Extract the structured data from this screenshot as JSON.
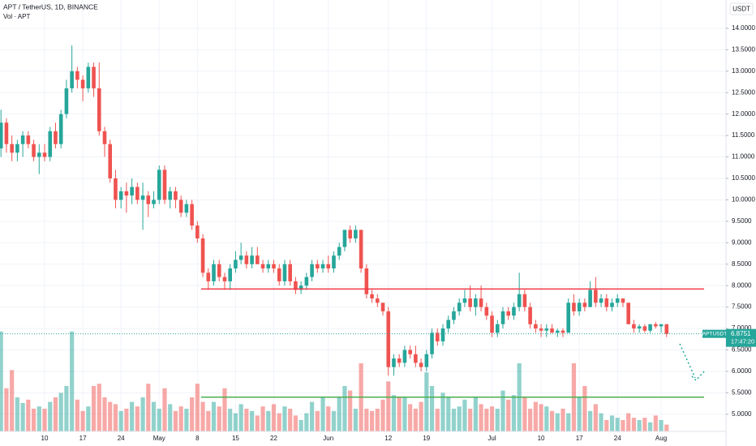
{
  "chart_data": {
    "type": "candlestick",
    "title": "APT / TetherUS, 1D, BINANCE",
    "currency": "USDT",
    "up_color": "#26a69a",
    "down_color": "#ef5350",
    "categories": [
      null,
      null,
      null,
      null,
      null,
      null,
      null,
      null,
      "10",
      null,
      null,
      null,
      null,
      null,
      null,
      "17",
      null,
      null,
      null,
      null,
      null,
      null,
      "24",
      null,
      null,
      null,
      null,
      null,
      null,
      "May",
      null,
      null,
      null,
      null,
      null,
      null,
      "8",
      null,
      null,
      null,
      null,
      null,
      null,
      "15",
      null,
      null,
      null,
      null,
      null,
      null,
      "22",
      null,
      null,
      null,
      null,
      null,
      null,
      null,
      null,
      null,
      "Jun",
      null,
      null,
      null,
      null,
      null,
      null,
      null,
      null,
      null,
      null,
      "12",
      null,
      null,
      null,
      null,
      null,
      null,
      "19",
      null,
      null,
      null,
      null,
      null,
      null,
      null,
      null,
      null,
      null,
      null,
      "Jul",
      null,
      null,
      null,
      null,
      null,
      null,
      null,
      null,
      "10",
      null,
      null,
      null,
      null,
      null,
      null,
      "17",
      null,
      null,
      null,
      null,
      null,
      null,
      "24",
      null,
      null,
      null,
      null,
      null,
      null,
      null,
      "Aug",
      null
    ],
    "open": [
      11.2,
      11.8,
      11.3,
      11.1,
      11.3,
      11.5,
      11.3,
      11.0,
      11.1,
      11.0,
      11.6,
      11.3,
      12.0,
      12.6,
      13.0,
      12.8,
      12.6,
      13.1,
      12.6,
      11.6,
      11.3,
      10.5,
      10.0,
      10.2,
      10.1,
      10.3,
      10.0,
      10.1,
      9.9,
      10.0,
      10.7,
      10.0,
      10.2,
      10.0,
      9.7,
      9.9,
      9.4,
      9.1,
      8.3,
      8.1,
      8.5,
      8.2,
      8.1,
      8.4,
      8.6,
      8.7,
      8.5,
      8.7,
      8.5,
      8.4,
      8.5,
      8.4,
      8.1,
      8.5,
      8.1,
      7.9,
      8.0,
      8.2,
      8.5,
      8.4,
      8.5,
      8.4,
      8.7,
      8.9,
      9.3,
      9.1,
      9.3,
      8.4,
      7.8,
      7.7,
      7.6,
      7.4,
      6.1,
      6.3,
      6.2,
      6.5,
      6.4,
      6.2,
      6.1,
      6.4,
      6.9,
      6.7,
      7.0,
      7.2,
      7.4,
      7.6,
      7.7,
      7.5,
      7.7,
      7.5,
      7.3,
      6.9,
      7.1,
      7.4,
      7.3,
      7.5,
      7.8,
      7.5,
      7.1,
      7.0,
      6.95,
      7.0,
      6.9,
      6.95,
      6.9,
      7.6,
      7.4,
      7.6,
      7.5,
      7.9,
      7.6,
      7.7,
      7.5,
      7.6,
      7.7,
      7.6,
      7.1,
      7.0,
      7.05,
      6.95,
      7.1,
      7.05,
      7.1
    ],
    "high": [
      12.1,
      11.9,
      11.5,
      11.4,
      11.6,
      11.6,
      11.4,
      11.3,
      11.3,
      11.7,
      11.8,
      12.1,
      12.8,
      13.6,
      13.1,
      12.9,
      13.2,
      13.2,
      13.2,
      11.7,
      11.4,
      10.7,
      10.3,
      10.4,
      10.5,
      10.4,
      10.4,
      10.2,
      10.2,
      10.8,
      10.8,
      10.3,
      10.3,
      10.1,
      10.0,
      10.0,
      9.5,
      9.2,
      8.4,
      8.6,
      8.6,
      8.3,
      8.5,
      8.8,
      9.0,
      8.8,
      8.9,
      8.9,
      8.6,
      8.6,
      8.6,
      8.5,
      8.6,
      8.6,
      8.2,
      8.1,
      8.3,
      8.6,
      8.6,
      8.6,
      8.7,
      8.8,
      9.0,
      9.3,
      9.4,
      9.4,
      9.3,
      8.5,
      7.9,
      7.8,
      7.6,
      7.5,
      6.4,
      6.4,
      6.6,
      6.6,
      6.6,
      6.3,
      6.5,
      7.0,
      7.0,
      7.1,
      7.3,
      7.5,
      7.7,
      7.9,
      8.0,
      7.8,
      8.0,
      7.6,
      7.4,
      7.2,
      7.5,
      7.5,
      7.6,
      8.3,
      7.9,
      7.6,
      7.2,
      7.1,
      7.1,
      7.1,
      7.0,
      7.0,
      7.7,
      7.8,
      7.7,
      7.7,
      8.1,
      8.2,
      7.8,
      7.8,
      7.7,
      7.8,
      7.7,
      7.6,
      7.2,
      7.1,
      7.1,
      7.1,
      7.15,
      7.1,
      7.1
    ],
    "low": [
      11.0,
      11.1,
      10.9,
      10.9,
      11.0,
      11.2,
      10.9,
      10.6,
      10.9,
      10.9,
      11.2,
      11.2,
      11.9,
      12.5,
      12.6,
      12.3,
      12.5,
      12.4,
      11.5,
      11.0,
      10.4,
      9.8,
      9.8,
      9.7,
      9.9,
      9.9,
      9.3,
      9.6,
      9.8,
      9.9,
      9.9,
      9.8,
      9.8,
      9.6,
      9.6,
      9.3,
      9.0,
      8.2,
      7.9,
      8.0,
      8.1,
      7.9,
      7.9,
      8.3,
      8.5,
      8.4,
      8.4,
      8.5,
      8.3,
      8.3,
      8.3,
      8.0,
      8.0,
      8.0,
      7.8,
      7.8,
      7.9,
      8.1,
      8.3,
      8.3,
      8.3,
      8.3,
      8.6,
      8.8,
      9.0,
      9.0,
      8.3,
      7.7,
      7.6,
      7.5,
      7.3,
      5.9,
      5.9,
      6.1,
      6.1,
      6.3,
      6.1,
      6.0,
      6.0,
      6.3,
      6.6,
      6.6,
      6.9,
      7.1,
      7.3,
      7.5,
      7.4,
      7.3,
      7.4,
      7.2,
      6.8,
      6.8,
      7.0,
      7.2,
      7.2,
      7.4,
      7.4,
      7.0,
      6.9,
      6.8,
      6.8,
      6.9,
      6.8,
      6.8,
      6.9,
      7.3,
      7.3,
      7.4,
      7.5,
      7.5,
      7.5,
      7.4,
      7.4,
      7.5,
      7.5,
      7.1,
      6.9,
      6.9,
      6.9,
      6.9,
      7.0,
      6.9,
      6.8
    ],
    "close": [
      11.8,
      11.3,
      11.1,
      11.3,
      11.5,
      11.3,
      11.0,
      11.1,
      11.0,
      11.6,
      11.3,
      12.0,
      12.6,
      13.0,
      12.8,
      12.6,
      13.1,
      12.6,
      11.6,
      11.3,
      10.5,
      10.0,
      10.2,
      10.1,
      10.3,
      10.0,
      10.1,
      9.9,
      10.0,
      10.7,
      10.0,
      10.2,
      10.0,
      9.7,
      9.9,
      9.4,
      9.1,
      8.3,
      8.1,
      8.5,
      8.2,
      8.1,
      8.4,
      8.6,
      8.7,
      8.5,
      8.7,
      8.5,
      8.4,
      8.5,
      8.4,
      8.1,
      8.5,
      8.1,
      7.9,
      8.0,
      8.2,
      8.5,
      8.4,
      8.5,
      8.4,
      8.7,
      8.9,
      9.3,
      9.1,
      9.3,
      8.4,
      7.8,
      7.7,
      7.6,
      7.4,
      6.1,
      6.3,
      6.2,
      6.5,
      6.4,
      6.2,
      6.1,
      6.4,
      6.9,
      6.7,
      7.0,
      7.2,
      7.4,
      7.6,
      7.7,
      7.5,
      7.7,
      7.5,
      7.3,
      6.9,
      7.1,
      7.4,
      7.3,
      7.5,
      7.8,
      7.5,
      7.1,
      7.0,
      6.95,
      7.0,
      6.9,
      6.95,
      6.9,
      7.6,
      7.4,
      7.6,
      7.5,
      7.9,
      7.6,
      7.7,
      7.5,
      7.6,
      7.7,
      7.6,
      7.1,
      7.0,
      7.05,
      6.95,
      7.1,
      7.05,
      7.1,
      6.8751
    ],
    "volume": {
      "name": "Vol · APT",
      "ylim": [
        0,
        100
      ],
      "values": [
        88,
        38,
        54,
        30,
        25,
        28,
        20,
        22,
        20,
        26,
        30,
        34,
        40,
        88,
        28,
        18,
        22,
        40,
        42,
        30,
        26,
        24,
        18,
        20,
        26,
        22,
        30,
        42,
        26,
        20,
        38,
        24,
        18,
        22,
        20,
        30,
        42,
        26,
        18,
        26,
        22,
        38,
        20,
        16,
        24,
        20,
        18,
        14,
        22,
        18,
        24,
        16,
        22,
        20,
        14,
        10,
        16,
        26,
        18,
        30,
        22,
        18,
        30,
        40,
        36,
        20,
        60,
        20,
        18,
        20,
        28,
        44,
        32,
        30,
        30,
        24,
        20,
        26,
        52,
        40,
        20,
        34,
        30,
        20,
        22,
        28,
        20,
        30,
        24,
        20,
        22,
        20,
        36,
        28,
        32,
        60,
        30,
        20,
        26,
        24,
        22,
        18,
        16,
        20,
        16,
        60,
        30,
        40,
        18,
        24,
        16,
        10,
        14,
        12,
        10,
        16,
        12,
        10,
        12,
        8,
        14,
        10,
        6
      ]
    },
    "ylim": [
      4.6,
      14.66
    ],
    "yticks": [
      {
        "value": 5,
        "label": "5.0000"
      },
      {
        "value": 5.5,
        "label": "5.5000"
      },
      {
        "value": 6,
        "label": "6.0000"
      },
      {
        "value": 6.5,
        "label": "6.5000"
      },
      {
        "value": 7,
        "label": "7.0000"
      },
      {
        "value": 7.5,
        "label": "7.5000"
      },
      {
        "value": 8,
        "label": "8.0000"
      },
      {
        "value": 8.5,
        "label": "8.5000"
      },
      {
        "value": 9,
        "label": "9.0000"
      },
      {
        "value": 9.5,
        "label": "9.5000"
      },
      {
        "value": 10,
        "label": "10.0000"
      },
      {
        "value": 10.5,
        "label": "10.5000"
      },
      {
        "value": 11,
        "label": "11.0000"
      },
      {
        "value": 11.5,
        "label": "11.5000"
      },
      {
        "value": 12,
        "label": "12.0000"
      },
      {
        "value": 12.5,
        "label": "12.5000"
      },
      {
        "value": 13,
        "label": "13.0000"
      },
      {
        "value": 13.5,
        "label": "13.5000"
      },
      {
        "value": 14,
        "label": "14.0000"
      }
    ],
    "grid": true,
    "levels": [
      {
        "value": 7.92,
        "color": "#f23645"
      },
      {
        "value": 5.4,
        "color": "#4caf50"
      }
    ],
    "last_price": {
      "symbol": "APTUSDT",
      "value": 6.8751,
      "countdown": "17:47:20"
    }
  }
}
